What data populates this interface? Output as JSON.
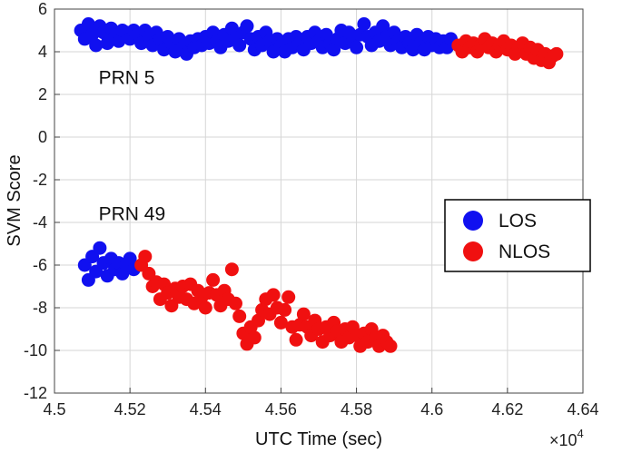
{
  "chart_data": {
    "type": "scatter",
    "xlabel": "UTC Time (sec)",
    "ylabel": "SVM Score",
    "x_multiplier_label": "×10",
    "x_multiplier_exp": "4",
    "xlim": [
      4.5,
      4.64
    ],
    "ylim": [
      -12,
      6
    ],
    "x_ticks": [
      "4.5",
      "4.52",
      "4.54",
      "4.56",
      "4.58",
      "4.6",
      "4.62",
      "4.64"
    ],
    "y_ticks": [
      "6",
      "4",
      "2",
      "0",
      "-2",
      "-4",
      "-6",
      "-8",
      "-10",
      "-12"
    ],
    "grid": true,
    "legend_position": "right",
    "annotations": [
      {
        "text": "PRN 5",
        "x": 4.5117,
        "y": 2.5
      },
      {
        "text": "PRN 49",
        "x": 4.5117,
        "y": -3.9
      }
    ],
    "series": [
      {
        "name": "LOS",
        "color": "#1010f0",
        "points": [
          [
            4.507,
            5.0
          ],
          [
            4.508,
            4.6
          ],
          [
            4.509,
            5.3
          ],
          [
            4.51,
            4.8
          ],
          [
            4.511,
            4.3
          ],
          [
            4.512,
            5.2
          ],
          [
            4.513,
            4.9
          ],
          [
            4.514,
            4.4
          ],
          [
            4.515,
            5.1
          ],
          [
            4.516,
            4.7
          ],
          [
            4.517,
            4.5
          ],
          [
            4.518,
            5.0
          ],
          [
            4.519,
            4.9
          ],
          [
            4.52,
            4.6
          ],
          [
            4.521,
            5.0
          ],
          [
            4.522,
            4.8
          ],
          [
            4.523,
            4.4
          ],
          [
            4.524,
            5.0
          ],
          [
            4.525,
            4.7
          ],
          [
            4.526,
            4.3
          ],
          [
            4.527,
            4.9
          ],
          [
            4.528,
            4.6
          ],
          [
            4.529,
            4.1
          ],
          [
            4.53,
            4.7
          ],
          [
            4.531,
            4.4
          ],
          [
            4.532,
            4.0
          ],
          [
            4.533,
            4.6
          ],
          [
            4.534,
            4.2
          ],
          [
            4.535,
            3.9
          ],
          [
            4.536,
            4.5
          ],
          [
            4.537,
            4.2
          ],
          [
            4.538,
            4.6
          ],
          [
            4.539,
            4.3
          ],
          [
            4.54,
            4.7
          ],
          [
            4.541,
            4.4
          ],
          [
            4.542,
            4.9
          ],
          [
            4.543,
            4.5
          ],
          [
            4.544,
            4.2
          ],
          [
            4.545,
            4.8
          ],
          [
            4.546,
            4.5
          ],
          [
            4.547,
            5.1
          ],
          [
            4.548,
            4.6
          ],
          [
            4.549,
            4.3
          ],
          [
            4.55,
            4.9
          ],
          [
            4.551,
            5.2
          ],
          [
            4.552,
            4.6
          ],
          [
            4.553,
            4.1
          ],
          [
            4.554,
            4.7
          ],
          [
            4.555,
            4.3
          ],
          [
            4.556,
            4.9
          ],
          [
            4.557,
            4.5
          ],
          [
            4.558,
            4.0
          ],
          [
            4.559,
            4.6
          ],
          [
            4.56,
            4.3
          ],
          [
            4.561,
            4.0
          ],
          [
            4.562,
            4.6
          ],
          [
            4.563,
            4.2
          ],
          [
            4.564,
            4.7
          ],
          [
            4.565,
            4.4
          ],
          [
            4.566,
            4.1
          ],
          [
            4.567,
            4.7
          ],
          [
            4.568,
            4.4
          ],
          [
            4.569,
            4.9
          ],
          [
            4.57,
            4.5
          ],
          [
            4.571,
            4.2
          ],
          [
            4.572,
            4.8
          ],
          [
            4.573,
            4.4
          ],
          [
            4.574,
            4.1
          ],
          [
            4.575,
            4.6
          ],
          [
            4.576,
            5.0
          ],
          [
            4.577,
            4.4
          ],
          [
            4.578,
            4.9
          ],
          [
            4.579,
            4.5
          ],
          [
            4.58,
            4.2
          ],
          [
            4.581,
            4.8
          ],
          [
            4.582,
            5.3
          ],
          [
            4.583,
            4.7
          ],
          [
            4.584,
            4.3
          ],
          [
            4.585,
            4.9
          ],
          [
            4.586,
            4.5
          ],
          [
            4.587,
            5.2
          ],
          [
            4.588,
            4.7
          ],
          [
            4.589,
            4.3
          ],
          [
            4.59,
            4.9
          ],
          [
            4.591,
            4.5
          ],
          [
            4.592,
            4.2
          ],
          [
            4.593,
            4.7
          ],
          [
            4.594,
            4.4
          ],
          [
            4.595,
            4.1
          ],
          [
            4.596,
            4.8
          ],
          [
            4.597,
            4.4
          ],
          [
            4.598,
            4.1
          ],
          [
            4.599,
            4.7
          ],
          [
            4.6,
            4.3
          ],
          [
            4.601,
            4.6
          ],
          [
            4.602,
            4.2
          ],
          [
            4.603,
            4.5
          ],
          [
            4.604,
            4.2
          ],
          [
            4.605,
            4.6
          ],
          [
            4.508,
            -6.0
          ],
          [
            4.509,
            -6.7
          ],
          [
            4.51,
            -5.6
          ],
          [
            4.511,
            -6.3
          ],
          [
            4.512,
            -5.2
          ],
          [
            4.513,
            -5.9
          ],
          [
            4.514,
            -6.5
          ],
          [
            4.515,
            -5.7
          ],
          [
            4.516,
            -6.2
          ],
          [
            4.517,
            -5.9
          ],
          [
            4.518,
            -6.4
          ],
          [
            4.519,
            -6.0
          ],
          [
            4.52,
            -5.7
          ],
          [
            4.521,
            -6.2
          ]
        ]
      },
      {
        "name": "NLOS",
        "color": "#f01010",
        "points": [
          [
            4.607,
            4.3
          ],
          [
            4.608,
            4.0
          ],
          [
            4.609,
            4.5
          ],
          [
            4.61,
            4.2
          ],
          [
            4.611,
            4.4
          ],
          [
            4.612,
            4.0
          ],
          [
            4.613,
            4.3
          ],
          [
            4.614,
            4.6
          ],
          [
            4.615,
            4.2
          ],
          [
            4.616,
            4.4
          ],
          [
            4.617,
            4.0
          ],
          [
            4.618,
            4.3
          ],
          [
            4.619,
            4.5
          ],
          [
            4.62,
            4.1
          ],
          [
            4.621,
            4.3
          ],
          [
            4.622,
            3.9
          ],
          [
            4.623,
            4.2
          ],
          [
            4.624,
            4.4
          ],
          [
            4.625,
            3.9
          ],
          [
            4.626,
            4.2
          ],
          [
            4.627,
            3.7
          ],
          [
            4.628,
            4.1
          ],
          [
            4.629,
            3.6
          ],
          [
            4.63,
            3.9
          ],
          [
            4.631,
            3.5
          ],
          [
            4.632,
            3.8
          ],
          [
            4.633,
            3.9
          ],
          [
            4.523,
            -6.0
          ],
          [
            4.524,
            -5.6
          ],
          [
            4.525,
            -6.4
          ],
          [
            4.526,
            -7.0
          ],
          [
            4.527,
            -6.8
          ],
          [
            4.528,
            -7.6
          ],
          [
            4.529,
            -6.9
          ],
          [
            4.53,
            -7.3
          ],
          [
            4.531,
            -7.9
          ],
          [
            4.532,
            -7.1
          ],
          [
            4.533,
            -7.5
          ],
          [
            4.534,
            -7.0
          ],
          [
            4.535,
            -7.6
          ],
          [
            4.536,
            -6.9
          ],
          [
            4.537,
            -7.8
          ],
          [
            4.538,
            -7.2
          ],
          [
            4.539,
            -7.5
          ],
          [
            4.54,
            -8.0
          ],
          [
            4.541,
            -7.3
          ],
          [
            4.542,
            -6.7
          ],
          [
            4.543,
            -7.4
          ],
          [
            4.544,
            -7.9
          ],
          [
            4.545,
            -7.2
          ],
          [
            4.546,
            -7.6
          ],
          [
            4.547,
            -6.2
          ],
          [
            4.548,
            -7.8
          ],
          [
            4.549,
            -8.4
          ],
          [
            4.55,
            -9.2
          ],
          [
            4.551,
            -9.7
          ],
          [
            4.552,
            -8.9
          ],
          [
            4.553,
            -9.4
          ],
          [
            4.554,
            -8.6
          ],
          [
            4.555,
            -8.1
          ],
          [
            4.556,
            -7.6
          ],
          [
            4.557,
            -8.3
          ],
          [
            4.558,
            -7.4
          ],
          [
            4.559,
            -8.0
          ],
          [
            4.56,
            -8.7
          ],
          [
            4.561,
            -8.1
          ],
          [
            4.562,
            -7.5
          ],
          [
            4.563,
            -8.9
          ],
          [
            4.564,
            -9.5
          ],
          [
            4.565,
            -8.8
          ],
          [
            4.566,
            -8.3
          ],
          [
            4.567,
            -8.9
          ],
          [
            4.568,
            -9.3
          ],
          [
            4.569,
            -8.6
          ],
          [
            4.57,
            -9.0
          ],
          [
            4.571,
            -9.6
          ],
          [
            4.572,
            -8.9
          ],
          [
            4.573,
            -9.3
          ],
          [
            4.574,
            -8.7
          ],
          [
            4.575,
            -9.1
          ],
          [
            4.576,
            -9.6
          ],
          [
            4.577,
            -9.0
          ],
          [
            4.578,
            -9.4
          ],
          [
            4.579,
            -8.9
          ],
          [
            4.58,
            -9.3
          ],
          [
            4.581,
            -9.8
          ],
          [
            4.582,
            -9.2
          ],
          [
            4.583,
            -9.6
          ],
          [
            4.584,
            -9.0
          ],
          [
            4.585,
            -9.4
          ],
          [
            4.586,
            -9.8
          ],
          [
            4.587,
            -9.3
          ],
          [
            4.588,
            -9.6
          ],
          [
            4.589,
            -9.8
          ]
        ]
      }
    ]
  }
}
